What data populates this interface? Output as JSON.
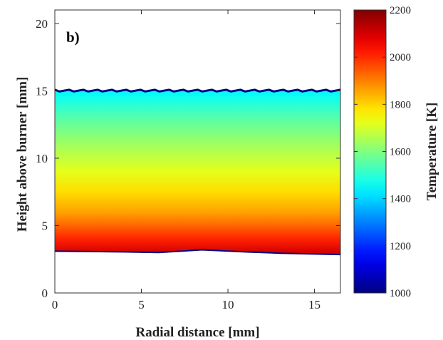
{
  "chart_data": {
    "type": "heatmap",
    "panel_label": "b)",
    "xlabel": "Radial distance [mm]",
    "ylabel": "Height above burner [mm]",
    "xlim": [
      0,
      16.5
    ],
    "ylim": [
      0,
      21
    ],
    "x_ticks": [
      0,
      5,
      10,
      15
    ],
    "y_ticks": [
      0,
      5,
      10,
      15,
      20
    ],
    "colorbar": {
      "label": "Temperature [K]",
      "range": [
        1000,
        2200
      ],
      "ticks": [
        1000,
        1200,
        1400,
        1600,
        1800,
        2000,
        2200
      ],
      "colormap": "jet"
    },
    "field": {
      "description_units": "Temperature [K] vs height above burner [mm]",
      "top_boundary_mm": 15.0,
      "bottom_boundary_mm": [
        [
          0,
          3.1
        ],
        [
          4,
          3.05
        ],
        [
          6,
          3.0
        ],
        [
          8.5,
          3.2
        ],
        [
          11,
          3.05
        ],
        [
          13,
          2.95
        ],
        [
          16.5,
          2.85
        ]
      ],
      "vertical_profile": [
        {
          "height": 3.0,
          "temperature": 2100
        },
        {
          "height": 4.0,
          "temperature": 2010
        },
        {
          "height": 5.0,
          "temperature": 1930
        },
        {
          "height": 6.0,
          "temperature": 1860
        },
        {
          "height": 7.5,
          "temperature": 1790
        },
        {
          "height": 9.0,
          "temperature": 1720
        },
        {
          "height": 11.0,
          "temperature": 1640
        },
        {
          "height": 13.0,
          "temperature": 1550
        },
        {
          "height": 14.5,
          "temperature": 1470
        },
        {
          "height": 15.0,
          "temperature": 1440
        }
      ],
      "edge_temperature": 1000
    }
  }
}
